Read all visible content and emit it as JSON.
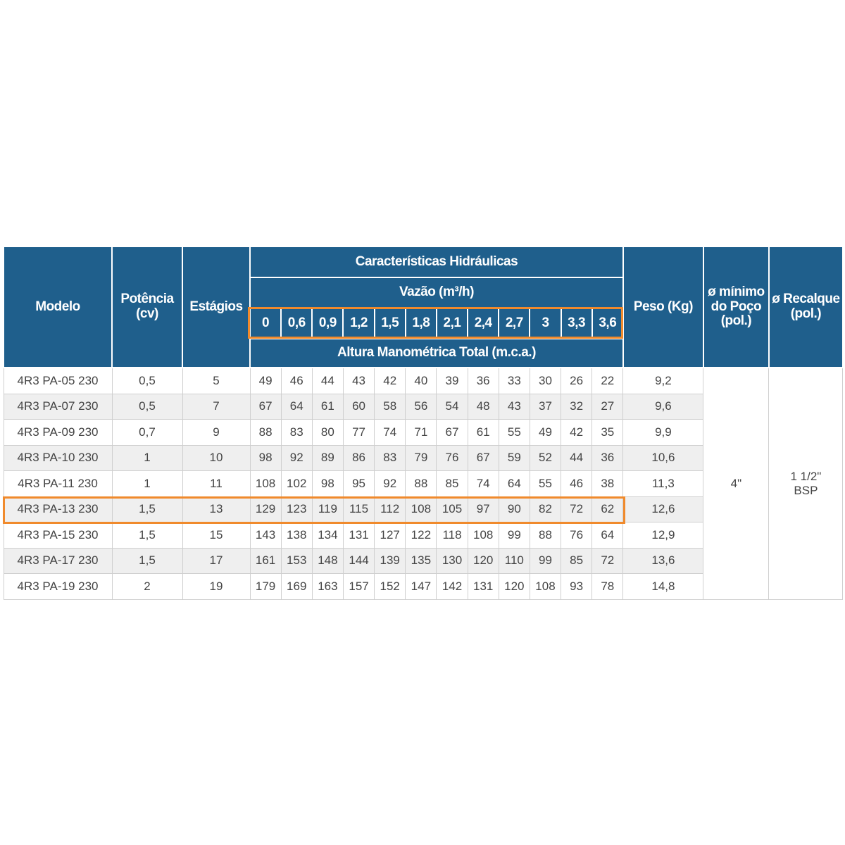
{
  "table": {
    "headers": {
      "model": "Modelo",
      "power": "Potência (cv)",
      "stages": "Estágios",
      "hydraulic": "Características Hidráulicas",
      "flow": "Vazão (m³/h)",
      "flow_values": [
        "0",
        "0,6",
        "0,9",
        "1,2",
        "1,5",
        "1,8",
        "2,1",
        "2,4",
        "2,7",
        "3",
        "3,3",
        "3,6"
      ],
      "head": "Altura Manométrica Total (m.c.a.)",
      "weight": "Peso (Kg)",
      "well": "ø mínimo do Poço (pol.)",
      "discharge": "ø Recalque (pol.)"
    },
    "rows": [
      [
        "4R3 PA-05 230",
        "0,5",
        "5",
        "49",
        "46",
        "44",
        "43",
        "42",
        "40",
        "39",
        "36",
        "33",
        "30",
        "26",
        "22",
        "9,2"
      ],
      [
        "4R3 PA-07 230",
        "0,5",
        "7",
        "67",
        "64",
        "61",
        "60",
        "58",
        "56",
        "54",
        "48",
        "43",
        "37",
        "32",
        "27",
        "9,6"
      ],
      [
        "4R3 PA-09 230",
        "0,7",
        "9",
        "88",
        "83",
        "80",
        "77",
        "74",
        "71",
        "67",
        "61",
        "55",
        "49",
        "42",
        "35",
        "9,9"
      ],
      [
        "4R3 PA-10 230",
        "1",
        "10",
        "98",
        "92",
        "89",
        "86",
        "83",
        "79",
        "76",
        "67",
        "59",
        "52",
        "44",
        "36",
        "10,6"
      ],
      [
        "4R3 PA-11 230",
        "1",
        "11",
        "108",
        "102",
        "98",
        "95",
        "92",
        "88",
        "85",
        "74",
        "64",
        "55",
        "46",
        "38",
        "11,3"
      ],
      [
        "4R3 PA-13 230",
        "1,5",
        "13",
        "129",
        "123",
        "119",
        "115",
        "112",
        "108",
        "105",
        "97",
        "90",
        "82",
        "72",
        "62",
        "12,6"
      ],
      [
        "4R3 PA-15 230",
        "1,5",
        "15",
        "143",
        "138",
        "134",
        "131",
        "127",
        "122",
        "118",
        "108",
        "99",
        "88",
        "76",
        "64",
        "12,9"
      ],
      [
        "4R3 PA-17 230",
        "1,5",
        "17",
        "161",
        "153",
        "148",
        "144",
        "139",
        "135",
        "130",
        "120",
        "110",
        "99",
        "85",
        "72",
        "13,6"
      ],
      [
        "4R3 PA-19 230",
        "2",
        "19",
        "179",
        "169",
        "163",
        "157",
        "152",
        "147",
        "142",
        "131",
        "120",
        "108",
        "93",
        "78",
        "14,8"
      ]
    ],
    "well_value": "4\"",
    "discharge_value": "1 1/2\" BSP"
  }
}
